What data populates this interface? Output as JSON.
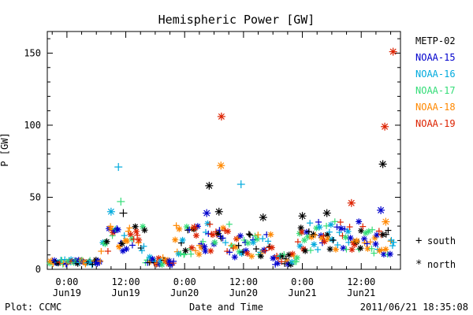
{
  "chart_data": {
    "type": "scatter",
    "title": "Hemispheric Power [GW]",
    "ylabel": "P [GW]",
    "xlabel": "Date and Time",
    "ylim": [
      0,
      165
    ],
    "xlim": [
      -4,
      68
    ],
    "yticks": [
      0,
      50,
      100,
      150
    ],
    "xticks": [
      {
        "x": 0,
        "top": "0:00",
        "bottom": "Jun19"
      },
      {
        "x": 12,
        "top": "12:00",
        "bottom": "Jun19"
      },
      {
        "x": 24,
        "top": "0:00",
        "bottom": "Jun20"
      },
      {
        "x": 36,
        "top": "12:00",
        "bottom": "Jun20"
      },
      {
        "x": 48,
        "top": "0:00",
        "bottom": "Jun21"
      },
      {
        "x": 60,
        "top": "12:00",
        "bottom": "Jun21"
      }
    ],
    "legend_position": "right",
    "series": [
      {
        "name": "METP-02",
        "color": "#000000"
      },
      {
        "name": "NOAA-15",
        "color": "#0000cc"
      },
      {
        "name": "NOAA-16",
        "color": "#00aadd"
      },
      {
        "name": "NOAA-17",
        "color": "#33dd77"
      },
      {
        "name": "NOAA-18",
        "color": "#ff8800"
      },
      {
        "name": "NOAA-19",
        "color": "#dd2200"
      }
    ],
    "marker_legend": [
      {
        "symbol": "+",
        "label": "south"
      },
      {
        "symbol": "*",
        "label": "north"
      }
    ],
    "highlight_points": [
      {
        "series": "NOAA-19",
        "x": 66.5,
        "y": 151,
        "marker": "*"
      },
      {
        "series": "NOAA-19",
        "x": 64.8,
        "y": 99,
        "marker": "*"
      },
      {
        "series": "METP-02",
        "x": 64.4,
        "y": 73,
        "marker": "*"
      },
      {
        "series": "NOAA-19",
        "x": 31.5,
        "y": 106,
        "marker": "*"
      },
      {
        "series": "NOAA-18",
        "x": 31.4,
        "y": 72,
        "marker": "*"
      },
      {
        "series": "NOAA-16",
        "x": 10.5,
        "y": 71,
        "marker": "+"
      },
      {
        "series": "NOAA-16",
        "x": 35.5,
        "y": 59,
        "marker": "+"
      },
      {
        "series": "METP-02",
        "x": 29,
        "y": 58,
        "marker": "*"
      },
      {
        "series": "NOAA-17",
        "x": 11,
        "y": 47,
        "marker": "+"
      },
      {
        "series": "NOAA-19",
        "x": 58,
        "y": 46,
        "marker": "*"
      },
      {
        "series": "NOAA-15",
        "x": 64,
        "y": 41,
        "marker": "*"
      },
      {
        "series": "METP-02",
        "x": 31,
        "y": 40,
        "marker": "*"
      },
      {
        "series": "NOAA-15",
        "x": 28.5,
        "y": 39,
        "marker": "*"
      },
      {
        "series": "METP-02",
        "x": 11.5,
        "y": 39,
        "marker": "+"
      },
      {
        "series": "NOAA-16",
        "x": 9,
        "y": 40,
        "marker": "*"
      },
      {
        "series": "METP-02",
        "x": 53,
        "y": 39,
        "marker": "*"
      },
      {
        "series": "METP-02",
        "x": 48,
        "y": 37,
        "marker": "*"
      },
      {
        "series": "METP-02",
        "x": 40,
        "y": 36,
        "marker": "*"
      },
      {
        "series": "NOAA-18",
        "x": 65,
        "y": 33,
        "marker": "*"
      },
      {
        "series": "NOAA-19",
        "x": 26,
        "y": 29,
        "marker": "*"
      }
    ]
  },
  "footer": {
    "left": "Plot: CCMC",
    "right": "2011/06/21 18:35:08"
  }
}
